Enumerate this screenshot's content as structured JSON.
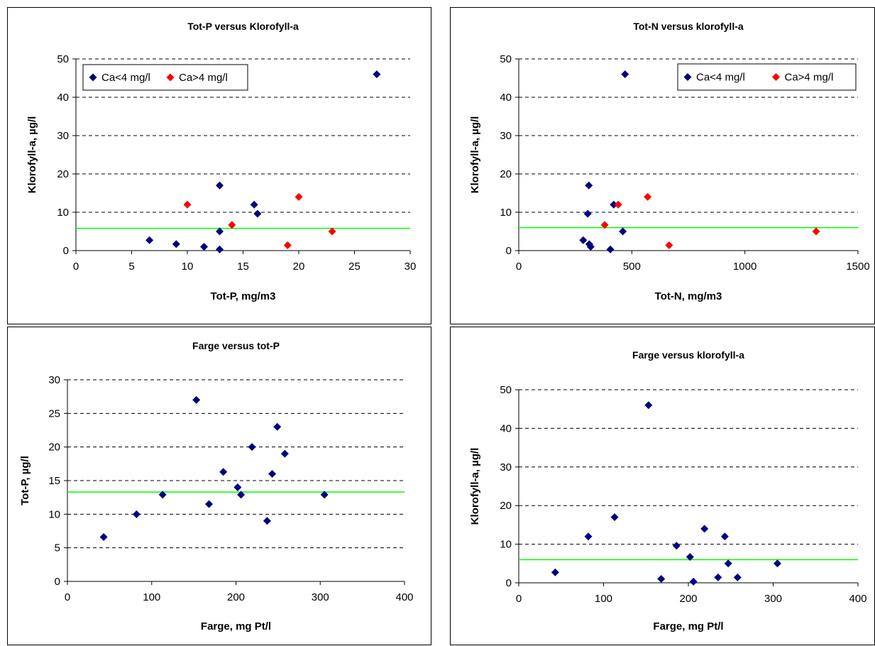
{
  "chart_data": [
    {
      "type": "scatter",
      "title": "Tot-P versus Klorofyll-a",
      "xlabel": "Tot-P, mg/m3",
      "ylabel": "Klorofyll-a, µg/l",
      "xlim": [
        0,
        30
      ],
      "ylim": [
        0,
        50
      ],
      "xticks": [
        0,
        5,
        10,
        15,
        20,
        25,
        30
      ],
      "yticks": [
        0,
        10,
        20,
        30,
        40,
        50
      ],
      "grid": "horizontal dashed",
      "legend": "top-left",
      "reference_line_y": 5.8,
      "reference_line_color": "#00ff00",
      "series": [
        {
          "name": "Ca<4 mg/l",
          "color": "#000080",
          "points": [
            [
              6.6,
              2.7
            ],
            [
              9,
              1.7
            ],
            [
              11.5,
              1.0
            ],
            [
              12.9,
              0.3
            ],
            [
              12.9,
              5.0
            ],
            [
              12.9,
              17.0
            ],
            [
              16.0,
              12.0
            ],
            [
              16.3,
              9.6
            ],
            [
              27.0,
              46.0
            ]
          ]
        },
        {
          "name": "Ca>4 mg/l",
          "color": "#ff0000",
          "points": [
            [
              10.0,
              12.0
            ],
            [
              14.0,
              6.7
            ],
            [
              19.0,
              1.4
            ],
            [
              20.0,
              14.0
            ],
            [
              23.0,
              5.0
            ]
          ]
        }
      ]
    },
    {
      "type": "scatter",
      "title": "Tot-N versus klorofyll-a",
      "xlabel": "Tot-N, mg/m3",
      "ylabel": "Klorofyll-a, µg/l",
      "xlim": [
        0,
        1500
      ],
      "ylim": [
        0,
        50
      ],
      "xticks": [
        0,
        500,
        1000,
        1500
      ],
      "yticks": [
        0,
        10,
        20,
        30,
        40,
        50
      ],
      "grid": "horizontal dashed",
      "legend": "top-right",
      "reference_line_y": 6.0,
      "reference_line_color": "#00ff00",
      "series": [
        {
          "name": "Ca<4 mg/l",
          "color": "#000080",
          "points": [
            [
              285,
              2.7
            ],
            [
              305,
              9.6
            ],
            [
              310,
              17.0
            ],
            [
              312,
              1.7
            ],
            [
              318,
              1.0
            ],
            [
              405,
              0.3
            ],
            [
              420,
              12.0
            ],
            [
              460,
              5.0
            ],
            [
              470,
              46.0
            ]
          ]
        },
        {
          "name": "Ca>4 mg/l",
          "color": "#ff0000",
          "points": [
            [
              380,
              6.7
            ],
            [
              440,
              12.0
            ],
            [
              570,
              14.0
            ],
            [
              665,
              1.4
            ],
            [
              1315,
              5.0
            ]
          ]
        }
      ]
    },
    {
      "type": "scatter",
      "title": "Farge versus tot-P",
      "xlabel": "Farge, mg Pt/l",
      "ylabel": "Tot-P, µg/l",
      "xlim": [
        0,
        400
      ],
      "ylim": [
        0,
        30
      ],
      "xticks": [
        0,
        100,
        200,
        300,
        400
      ],
      "yticks": [
        0,
        5,
        10,
        15,
        20,
        25,
        30
      ],
      "grid": "horizontal dashed",
      "reference_line_y": 13.3,
      "reference_line_color": "#00ff00",
      "series": [
        {
          "color": "#000080",
          "points": [
            [
              43,
              6.6
            ],
            [
              82,
              10.0
            ],
            [
              113,
              12.9
            ],
            [
              153,
              27.0
            ],
            [
              168,
              11.5
            ],
            [
              185,
              16.3
            ],
            [
              202,
              14.0
            ],
            [
              206,
              12.9
            ],
            [
              219,
              20.0
            ],
            [
              237,
              9.0
            ],
            [
              243,
              16.0
            ],
            [
              249,
              23.0
            ],
            [
              258,
              19.0
            ],
            [
              305,
              12.9
            ]
          ]
        }
      ]
    },
    {
      "type": "scatter",
      "title": "Farge versus klorofyll-a",
      "xlabel": "Farge, mg Pt/l",
      "ylabel": "Klorofyll-a, µg/l",
      "xlim": [
        0,
        400
      ],
      "ylim": [
        0,
        50
      ],
      "xticks": [
        0,
        100,
        200,
        300,
        400
      ],
      "yticks": [
        0,
        10,
        20,
        30,
        40,
        50
      ],
      "grid": "horizontal dashed",
      "reference_line_y": 6.0,
      "reference_line_color": "#00ff00",
      "series": [
        {
          "color": "#000080",
          "points": [
            [
              43,
              2.7
            ],
            [
              82,
              12.0
            ],
            [
              113,
              17.0
            ],
            [
              153,
              46.0
            ],
            [
              168,
              1.0
            ],
            [
              186,
              9.6
            ],
            [
              202,
              6.7
            ],
            [
              206,
              0.3
            ],
            [
              219,
              14.0
            ],
            [
              235,
              1.4
            ],
            [
              243,
              12.0
            ],
            [
              247,
              5.0
            ],
            [
              258,
              1.4
            ],
            [
              305,
              5.0
            ]
          ]
        }
      ]
    }
  ]
}
